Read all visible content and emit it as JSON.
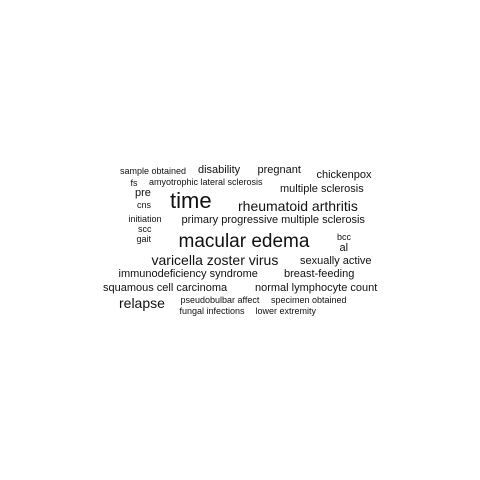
{
  "text_color": "#111111",
  "background": "#ffffff",
  "words": [
    {
      "text": "sample obtained",
      "weight": 2
    },
    {
      "text": "disability",
      "weight": 3
    },
    {
      "text": "pregnant",
      "weight": 3
    },
    {
      "text": "chickenpox",
      "weight": 3
    },
    {
      "text": "fs",
      "weight": 1
    },
    {
      "text": "amyotrophic lateral sclerosis",
      "weight": 2
    },
    {
      "text": "pre",
      "weight": 3
    },
    {
      "text": "multiple sclerosis",
      "weight": 3
    },
    {
      "text": "cns",
      "weight": 1
    },
    {
      "text": "time",
      "weight": 10
    },
    {
      "text": "rheumatoid arthritis",
      "weight": 5
    },
    {
      "text": "initiation",
      "weight": 2
    },
    {
      "text": "primary progressive multiple sclerosis",
      "weight": 3
    },
    {
      "text": "scc",
      "weight": 1
    },
    {
      "text": "gait",
      "weight": 1
    },
    {
      "text": "macular edema",
      "weight": 8
    },
    {
      "text": "bcc",
      "weight": 1
    },
    {
      "text": "al",
      "weight": 3
    },
    {
      "text": "varicella zoster virus",
      "weight": 5
    },
    {
      "text": "sexually active",
      "weight": 3
    },
    {
      "text": "immunodeficiency syndrome",
      "weight": 3
    },
    {
      "text": "breast-feeding",
      "weight": 3
    },
    {
      "text": "squamous cell carcinoma",
      "weight": 3
    },
    {
      "text": "normal lymphocyte count",
      "weight": 3
    },
    {
      "text": "relapse",
      "weight": 5
    },
    {
      "text": "pseudobulbar affect",
      "weight": 2
    },
    {
      "text": "specimen obtained",
      "weight": 2
    },
    {
      "text": "fungal infections",
      "weight": 2
    },
    {
      "text": "lower extremity",
      "weight": 2
    }
  ]
}
